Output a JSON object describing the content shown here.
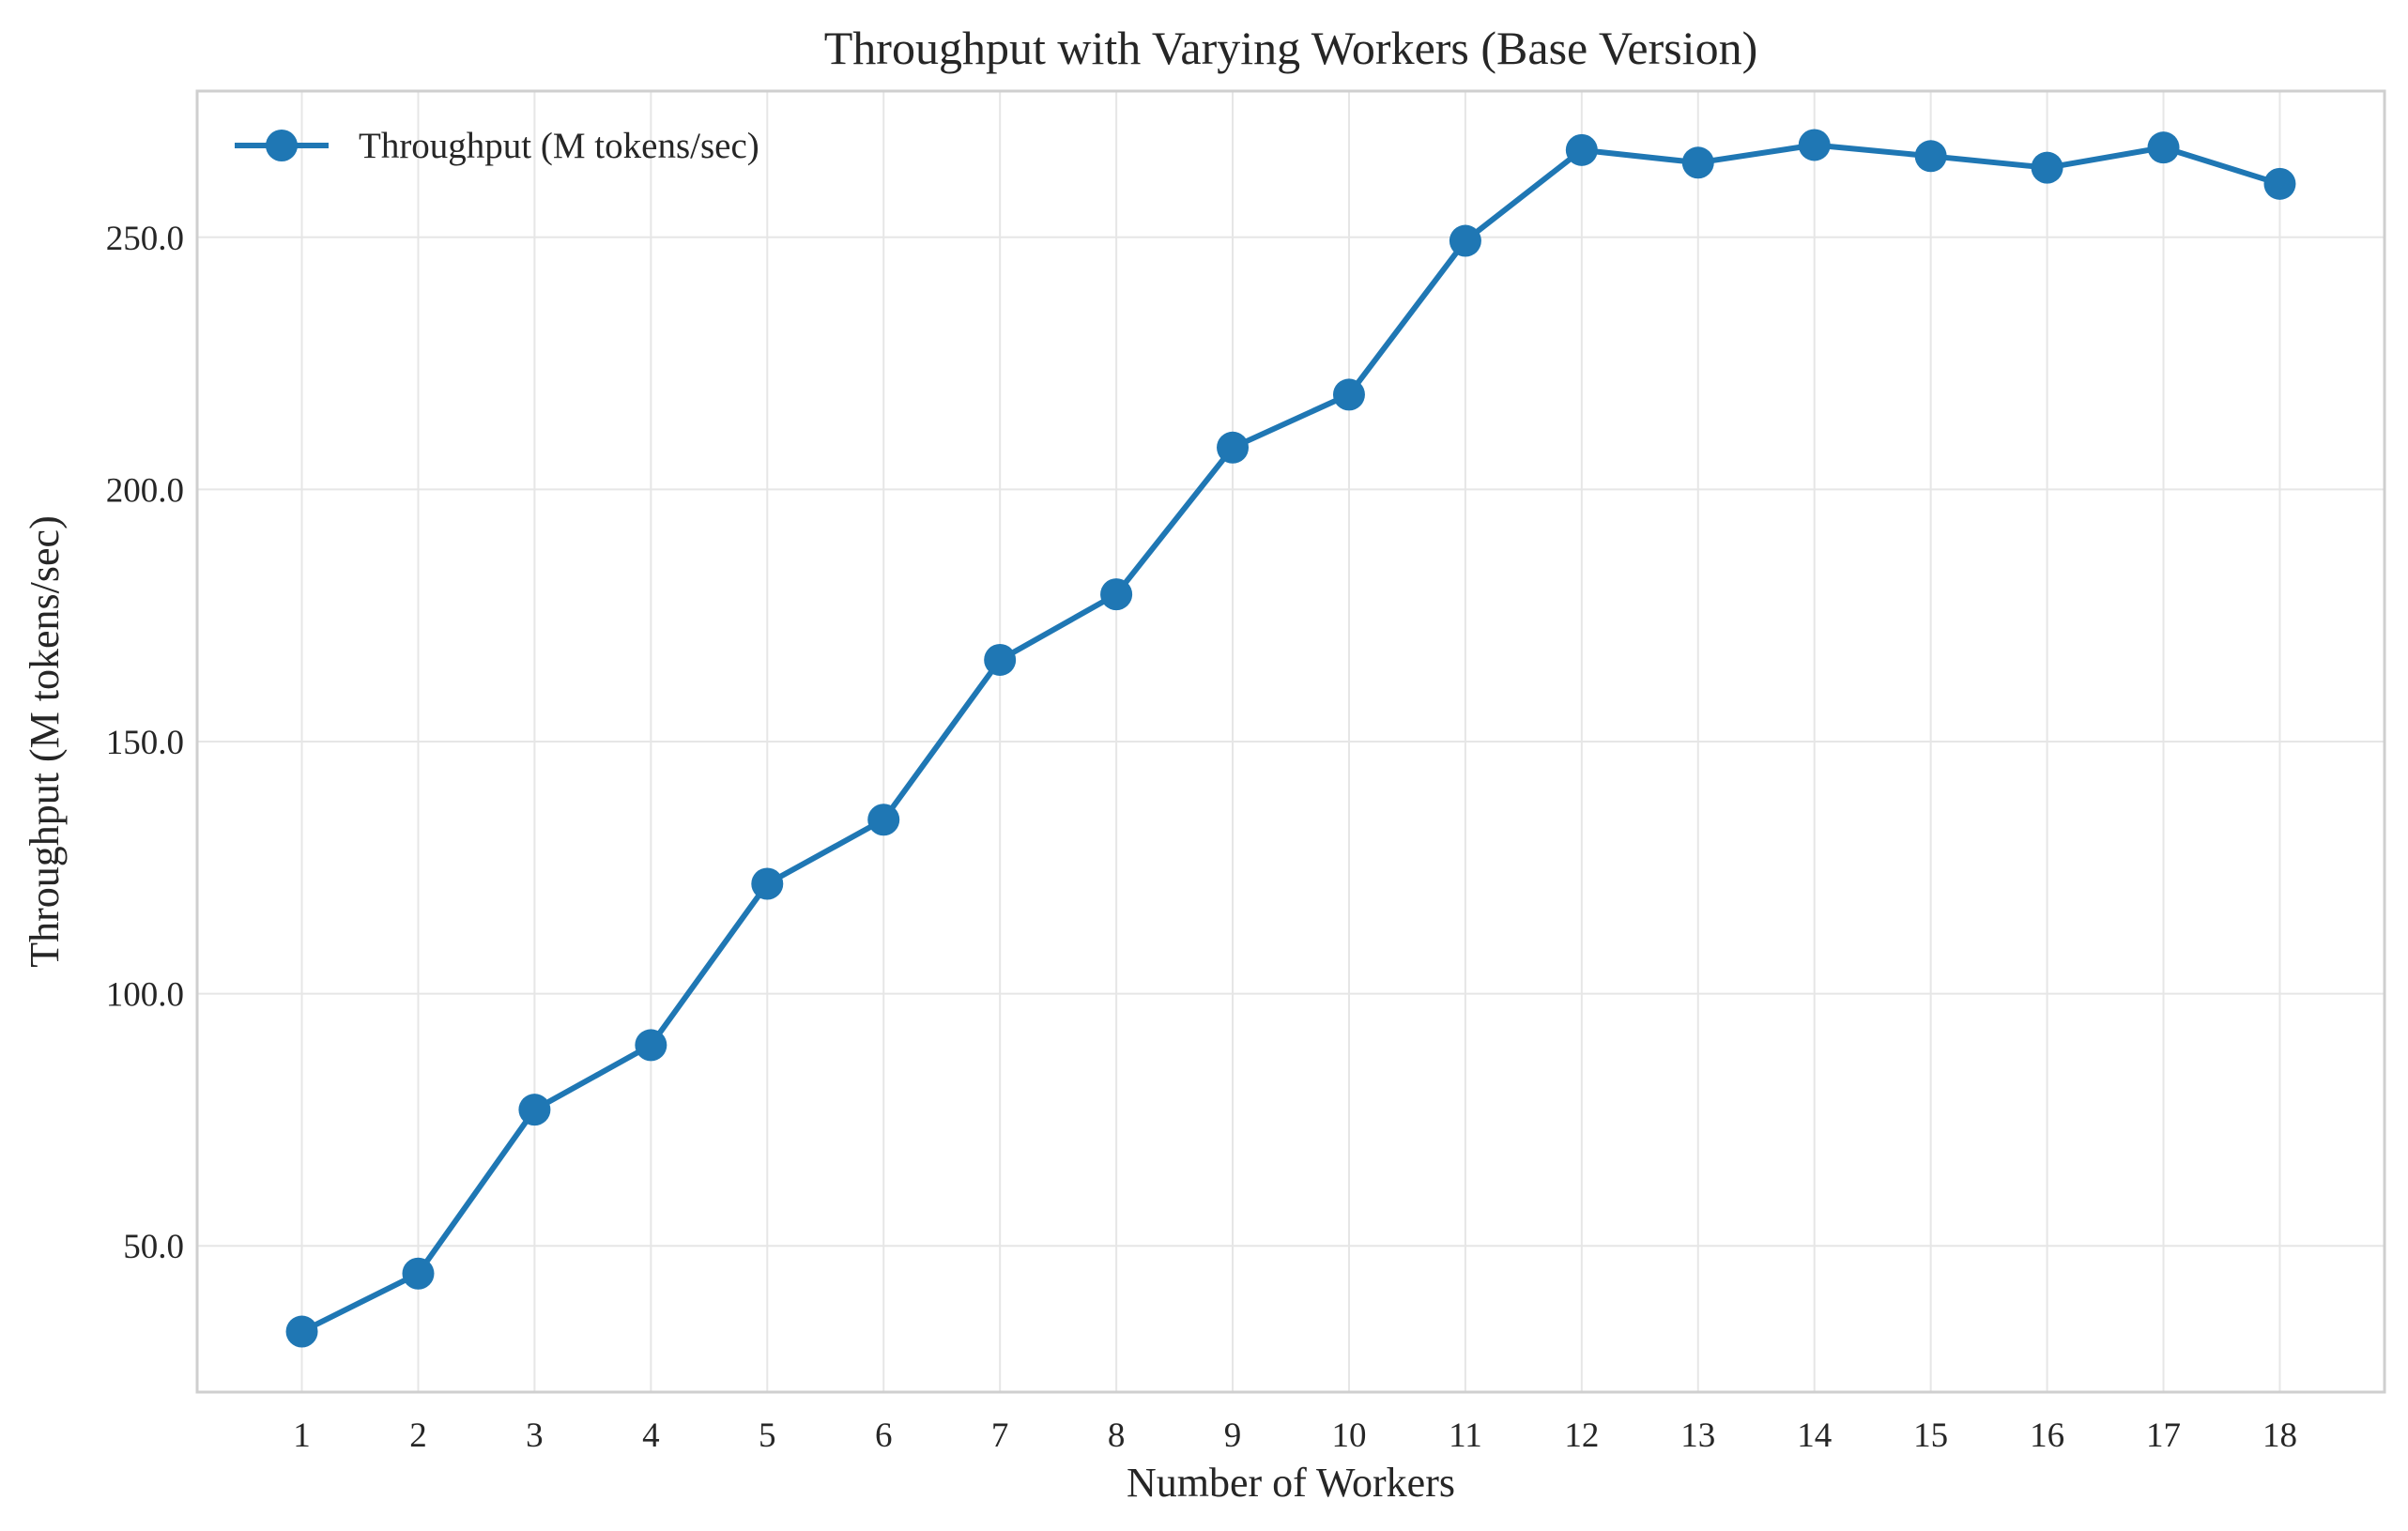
{
  "chart_data": {
    "type": "line",
    "title": "Throughput with Varying Workers (Base Version)",
    "xlabel": "Number of Workers",
    "ylabel": "Throughput (M tokens/sec)",
    "x": [
      1,
      2,
      3,
      4,
      5,
      6,
      7,
      8,
      9,
      10,
      11,
      12,
      13,
      14,
      15,
      16,
      17,
      18
    ],
    "x_tick_labels": [
      "1",
      "2",
      "3",
      "4",
      "5",
      "6",
      "7",
      "8",
      "9",
      "10",
      "11",
      "12",
      "13",
      "14",
      "15",
      "16",
      "17",
      "18"
    ],
    "y_ticks": [
      50,
      100,
      150,
      200,
      250
    ],
    "y_tick_labels": [
      "50.0",
      "100.0",
      "150.0",
      "200.0",
      "250.0"
    ],
    "xlim": [
      0.1,
      18.9
    ],
    "ylim": [
      21,
      279
    ],
    "grid": true,
    "legend_position": "top-left",
    "series": [
      {
        "name": "Throughput (M tokens/sec)",
        "color": "#1f77b4",
        "marker": "circle",
        "values": [
          33,
          44.5,
          77,
          89.8,
          121.8,
          134.5,
          166.2,
          179.2,
          208.3,
          218.8,
          249.3,
          267.3,
          264.8,
          268.3,
          266.1,
          263.8,
          267.8,
          260.6
        ]
      }
    ]
  }
}
